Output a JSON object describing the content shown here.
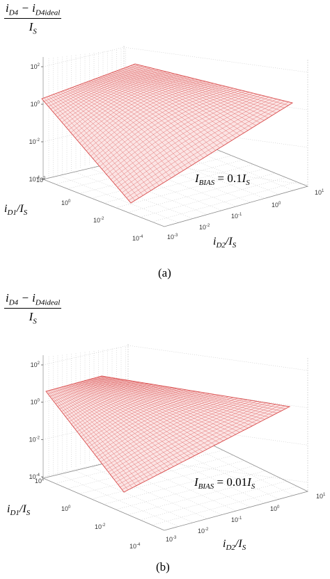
{
  "z_numerator_main": "i",
  "z_numerator_sub": "D4",
  "z_minus": " − i",
  "z_numerator_sub2": "D4ideal",
  "z_denominator_main": "I",
  "z_denominator_sub": "S",
  "x_axis_label": "i",
  "x_axis_sub": "D2",
  "x_axis_over": "/I",
  "x_axis_sub2": "S",
  "y_axis_label": "i",
  "y_axis_sub": "D1",
  "y_axis_over": "/I",
  "y_axis_sub2": "S",
  "chart_data": [
    {
      "type": "surface",
      "panel_label": "(a)",
      "annotation": {
        "main": "I",
        "sub": "BIAS",
        "rest": " = 0.1I",
        "sub2": "S"
      },
      "z_scale": "log",
      "zlim": [
        0.0001,
        100
      ],
      "z_ticks": [
        {
          "base": "10",
          "exp": "2"
        },
        {
          "base": "10",
          "exp": "0"
        },
        {
          "base": "10",
          "exp": "-2"
        },
        {
          "base": "10",
          "exp": "-4"
        }
      ],
      "x_scale": "log",
      "x_ticks": [
        {
          "base": "10",
          "exp": "-3"
        },
        {
          "base": "10",
          "exp": "-2"
        },
        {
          "base": "10",
          "exp": "-1"
        },
        {
          "base": "10",
          "exp": "0"
        },
        {
          "base": "10",
          "exp": "1"
        }
      ],
      "y_scale": "log",
      "y_ticks": [
        {
          "base": "10",
          "exp": "2"
        },
        {
          "base": "10",
          "exp": "0"
        },
        {
          "base": "10",
          "exp": "-2"
        },
        {
          "base": "10",
          "exp": "-4"
        }
      ],
      "surface_color": "#d94b4b",
      "grid": true,
      "corner_values": {
        "iD1_max_iD2_min": 1,
        "iD1_max_iD2_max": 50,
        "iD1_min_iD2_max": 1,
        "iD1_min_iD2_min": 0.0001
      }
    },
    {
      "type": "surface",
      "panel_label": "(b)",
      "annotation": {
        "main": "I",
        "sub": "BIAS",
        "rest": " = 0.01I",
        "sub2": "S"
      },
      "z_scale": "log",
      "zlim": [
        0.0001,
        100
      ],
      "z_ticks": [
        {
          "base": "10",
          "exp": "2"
        },
        {
          "base": "10",
          "exp": "0"
        },
        {
          "base": "10",
          "exp": "-2"
        },
        {
          "base": "10",
          "exp": "-4"
        }
      ],
      "x_scale": "log",
      "x_ticks": [
        {
          "base": "10",
          "exp": "-3"
        },
        {
          "base": "10",
          "exp": "-2"
        },
        {
          "base": "10",
          "exp": "-1"
        },
        {
          "base": "10",
          "exp": "0"
        },
        {
          "base": "10",
          "exp": "1"
        }
      ],
      "y_scale": "log",
      "y_ticks": [
        {
          "base": "10",
          "exp": "1"
        },
        {
          "base": "10",
          "exp": "0"
        },
        {
          "base": "10",
          "exp": "-2"
        },
        {
          "base": "10",
          "exp": "-4"
        }
      ],
      "surface_color": "#d94b4b",
      "grid": true,
      "corner_values": {
        "iD1_max_iD2_min": 10,
        "iD1_max_iD2_max": 50,
        "iD1_min_iD2_max": 2,
        "iD1_min_iD2_min": 0.0001
      }
    }
  ]
}
